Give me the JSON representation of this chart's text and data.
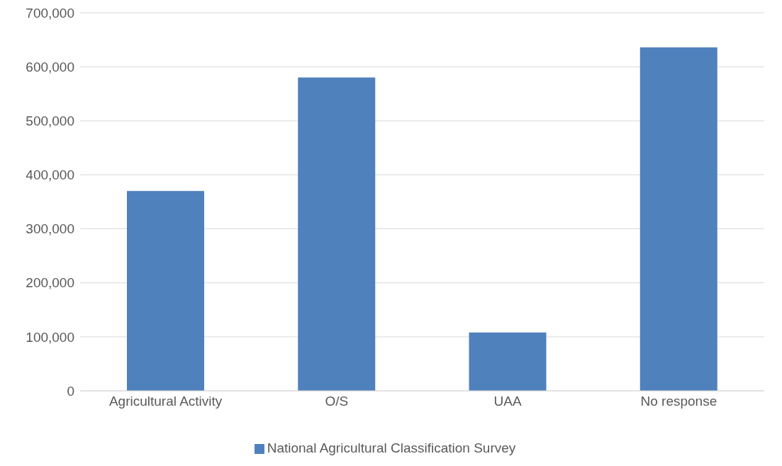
{
  "chart_data": {
    "type": "bar",
    "categories": [
      "Agricultural Activity",
      "O/S",
      "UAA",
      "No response"
    ],
    "series": [
      {
        "name": "National Agricultural Classification Survey",
        "color": "#4f81bd",
        "values": [
          370000,
          580000,
          108000,
          636000
        ]
      }
    ],
    "ylim": [
      0,
      700000
    ],
    "yticks": [
      {
        "value": 0,
        "label": "0"
      },
      {
        "value": 100000,
        "label": "100,000"
      },
      {
        "value": 200000,
        "label": "200,000"
      },
      {
        "value": 300000,
        "label": "300,000"
      },
      {
        "value": 400000,
        "label": "400,000"
      },
      {
        "value": 500000,
        "label": "500,000"
      },
      {
        "value": 600000,
        "label": "600,000"
      },
      {
        "value": 700000,
        "label": "700,000"
      }
    ],
    "grid": "y",
    "legend": "bottom"
  }
}
